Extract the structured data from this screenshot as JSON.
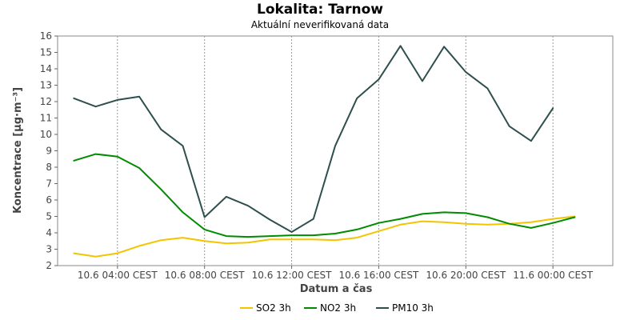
{
  "chart_data": {
    "type": "line",
    "title": "Lokalita: Tarnow",
    "subtitle": "Aktuální neverifikovaná data",
    "xlabel": "Datum a čas",
    "ylabel": "Koncentrace [µg·m⁻³]",
    "ylim": [
      2,
      16
    ],
    "yticks": [
      2,
      3,
      4,
      5,
      6,
      7,
      8,
      9,
      10,
      11,
      12,
      13,
      14,
      15,
      16
    ],
    "xlim": [
      "10.6 01:15",
      "11.6 02:45"
    ],
    "xticks": [
      {
        "x": "10.6 04:00",
        "label": "10.6 04:00 CEST"
      },
      {
        "x": "10.6 08:00",
        "label": "10.6 08:00 CEST"
      },
      {
        "x": "10.6 12:00",
        "label": "10.6 12:00 CEST"
      },
      {
        "x": "10.6 16:00",
        "label": "10.6 16:00 CEST"
      },
      {
        "x": "10.6 20:00",
        "label": "10.6 20:00 CEST"
      },
      {
        "x": "11.6 00:00",
        "label": "11.6 00:00 CEST"
      }
    ],
    "x": [
      "10.6 02:00",
      "10.6 03:00",
      "10.6 04:00",
      "10.6 05:00",
      "10.6 06:00",
      "10.6 07:00",
      "10.6 08:00",
      "10.6 09:00",
      "10.6 10:00",
      "10.6 11:00",
      "10.6 12:00",
      "10.6 13:00",
      "10.6 14:00",
      "10.6 15:00",
      "10.6 16:00",
      "10.6 17:00",
      "10.6 18:00",
      "10.6 19:00",
      "10.6 20:00",
      "10.6 21:00",
      "10.6 22:00",
      "10.6 23:00",
      "11.6 00:00",
      "11.6 01:00",
      "11.6 02:00"
    ],
    "grid": true,
    "legend_position": "bottom",
    "series": [
      {
        "name": "SO2 3h",
        "color": "#f2c500",
        "values": [
          2.75,
          2.55,
          2.75,
          3.2,
          3.55,
          3.7,
          3.5,
          3.35,
          3.4,
          3.6,
          3.6,
          3.6,
          3.55,
          3.7,
          4.1,
          4.5,
          4.7,
          4.65,
          4.55,
          4.5,
          4.55,
          4.65,
          4.85,
          5.0,
          null
        ]
      },
      {
        "name": "NO2 3h",
        "color": "#008c00",
        "values": [
          8.4,
          8.8,
          8.65,
          7.95,
          6.65,
          5.25,
          4.2,
          3.8,
          3.75,
          3.8,
          3.85,
          3.85,
          3.95,
          4.2,
          4.6,
          4.85,
          5.15,
          5.25,
          5.2,
          4.95,
          4.55,
          4.3,
          4.6,
          4.95,
          null
        ]
      },
      {
        "name": "PM10 3h",
        "color": "#2f4f4f",
        "values": [
          12.2,
          11.7,
          12.1,
          12.3,
          10.3,
          9.3,
          4.95,
          6.2,
          5.65,
          4.8,
          4.05,
          4.85,
          9.3,
          12.2,
          13.35,
          15.4,
          13.25,
          15.35,
          13.8,
          12.8,
          10.5,
          9.6,
          11.6,
          null,
          null
        ]
      }
    ]
  }
}
